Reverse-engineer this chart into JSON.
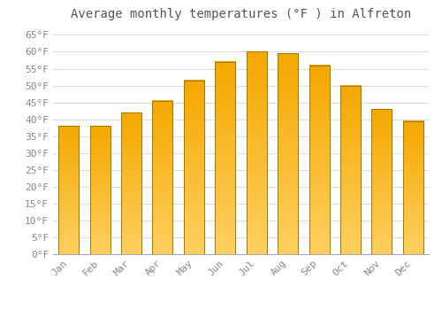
{
  "title": "Average monthly temperatures (°F ) in Alfreton",
  "months": [
    "Jan",
    "Feb",
    "Mar",
    "Apr",
    "May",
    "Jun",
    "Jul",
    "Aug",
    "Sep",
    "Oct",
    "Nov",
    "Dec"
  ],
  "values": [
    38,
    38,
    42,
    45.5,
    51.5,
    57,
    60,
    59.5,
    56,
    50,
    43,
    39.5
  ],
  "bar_color_top": "#F5A800",
  "bar_color_bottom": "#FFD060",
  "bar_edge_color": "#A07800",
  "background_color": "#FFFFFF",
  "grid_color": "#DDDDDD",
  "ylim": [
    0,
    68
  ],
  "yticks": [
    0,
    5,
    10,
    15,
    20,
    25,
    30,
    35,
    40,
    45,
    50,
    55,
    60,
    65
  ],
  "title_fontsize": 10,
  "tick_fontsize": 8,
  "tick_color": "#888888",
  "title_color": "#555555"
}
